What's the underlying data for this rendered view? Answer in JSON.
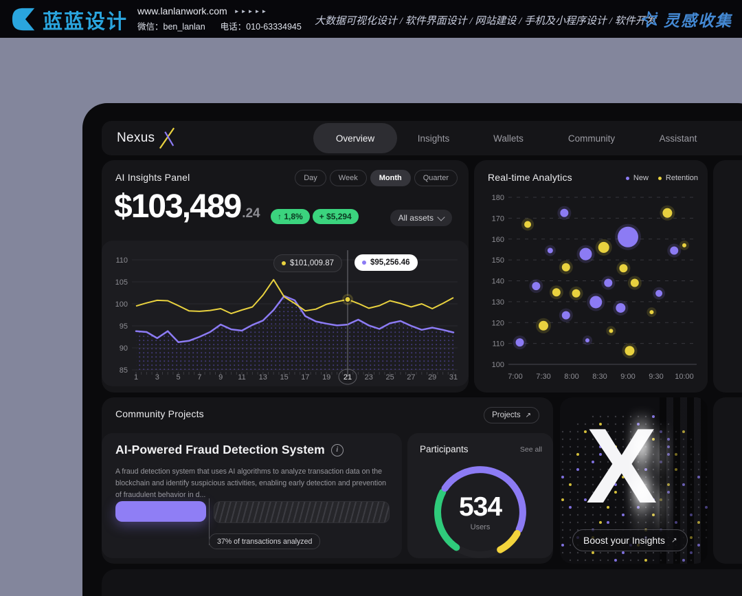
{
  "colors": {
    "purple": "#8C7BF4",
    "yellow": "#E9D23F",
    "green": "#3BD47E",
    "blue": "#2AA5DE"
  },
  "banner": {
    "brand": "蓝蓝设计",
    "url": "www.lanlanwork.com",
    "arrows": "►►►►►",
    "wechat": "微信：ben_lanlan",
    "phone": "电话：010-63334945",
    "services": "大数据可视化设计 / 软件界面设计 / 网站建设 / 手机及小程序设计 / 软件开发",
    "inspiration": "灵感收集"
  },
  "nav": {
    "brand": "Nexus",
    "active_tab": "Overview",
    "tabs": [
      {
        "label": "Overview"
      },
      {
        "label": "Insights"
      },
      {
        "label": "Wallets"
      },
      {
        "label": "Community"
      },
      {
        "label": "Assistant"
      }
    ]
  },
  "ai_panel": {
    "title": "AI Insights Panel",
    "ranges": [
      "Day",
      "Week",
      "Month",
      "Quarter"
    ],
    "active_range": "Month",
    "value": "$103,489",
    "decimal": ".24",
    "change_pct": "↑ 1,8%",
    "change_amount": "+ $5,294",
    "assets_dropdown": "All assets",
    "tooltip_yellow": "$101,009.87",
    "tooltip_white": "$95,256.46"
  },
  "realtime": {
    "title": "Real-time Analytics",
    "legend": [
      {
        "label": "New",
        "color": "#8C7BF4"
      },
      {
        "label": "Retention",
        "color": "#E9D23F"
      }
    ]
  },
  "community": {
    "title": "Community Projects",
    "projects_button": "Projects",
    "fraud": {
      "title": "AI-Powered Fraud Detection System",
      "description": "A fraud detection system that uses AI algorithms to analyze transaction data on the blockchain and identify suspicious activities, enabling early detection and prevention of fraudulent behavior in d...",
      "progress_pct": 37,
      "progress_label": "37% of transactions analyzed"
    },
    "participants": {
      "title": "Participants",
      "see_all": "See all",
      "value": "534",
      "unit": "Users"
    }
  },
  "boost": {
    "label": "Boost your Insights",
    "graphic_letter": "X"
  },
  "chart_data": [
    {
      "type": "line",
      "title": "AI Insights Panel (Month)",
      "x": [
        1,
        2,
        3,
        4,
        5,
        6,
        7,
        8,
        9,
        10,
        11,
        12,
        13,
        14,
        15,
        16,
        17,
        18,
        19,
        20,
        21,
        22,
        23,
        24,
        25,
        26,
        27,
        28,
        29,
        30,
        31
      ],
      "xticks": [
        1,
        3,
        5,
        7,
        9,
        11,
        13,
        15,
        17,
        19,
        21,
        23,
        25,
        27,
        29,
        31
      ],
      "selected_x": 21,
      "crosshair_x": 21,
      "ylim": [
        85,
        110
      ],
      "yticks": [
        85,
        90,
        95,
        100,
        105,
        110
      ],
      "grid": true,
      "series": [
        {
          "name": "Retention",
          "color": "#E9D23F",
          "values": [
            99.5,
            100.2,
            100.8,
            100.7,
            99.6,
            98.4,
            98.3,
            98.5,
            98.9,
            97.8,
            98.6,
            99.3,
            102.0,
            105.5,
            101.6,
            100.1,
            98.4,
            98.8,
            99.9,
            100.5,
            101.0,
            100.1,
            99.0,
            99.6,
            100.7,
            100.1,
            99.3,
            100.0,
            98.9,
            100.1,
            101.4
          ]
        },
        {
          "name": "New",
          "color": "#8C7BF4",
          "area_dots": true,
          "values": [
            93.8,
            93.6,
            92.2,
            93.8,
            91.3,
            91.6,
            92.5,
            93.6,
            95.3,
            94.2,
            93.9,
            95.2,
            96.2,
            98.6,
            101.8,
            100.8,
            97.2,
            96.0,
            95.5,
            95.1,
            95.3,
            96.4,
            95.1,
            94.3,
            95.6,
            96.1,
            95.0,
            94.1,
            94.6,
            94.1,
            93.5
          ]
        }
      ],
      "markers": [
        {
          "series": "Retention",
          "x": 21,
          "value_label": "$101,009.87"
        },
        {
          "series": "New",
          "x": 21,
          "value_label": "$95,256.46"
        }
      ]
    },
    {
      "type": "scatter",
      "title": "Real-time Analytics",
      "xlim": [
        7,
        10
      ],
      "xticks": [
        "7:00",
        "7:30",
        "8:00",
        "8:30",
        "9:00",
        "9:30",
        "10:00"
      ],
      "ylim": [
        100,
        180
      ],
      "yticks": [
        100,
        110,
        120,
        130,
        140,
        150,
        160,
        170,
        180
      ],
      "grid": "dashed",
      "series": [
        {
          "name": "New",
          "color": "#8C7BF4",
          "points": [
            [
              7.08,
              110.5,
              6
            ],
            [
              7.37,
              137.5,
              6
            ],
            [
              7.62,
              154.5,
              4
            ],
            [
              7.87,
              172.5,
              6
            ],
            [
              7.9,
              123.5,
              6
            ],
            [
              8.25,
              152.8,
              9
            ],
            [
              8.28,
              111.5,
              3
            ],
            [
              8.43,
              129.8,
              9
            ],
            [
              8.65,
              139,
              6
            ],
            [
              8.87,
              127,
              7
            ],
            [
              9.0,
              161,
              15
            ],
            [
              9.55,
              134,
              5
            ],
            [
              9.82,
              154.5,
              6
            ]
          ]
        },
        {
          "name": "Retention",
          "color": "#E9D23F",
          "points": [
            [
              7.22,
              167,
              5
            ],
            [
              7.5,
              118.5,
              7
            ],
            [
              7.73,
              134.5,
              6
            ],
            [
              7.9,
              146.5,
              6
            ],
            [
              8.08,
              134,
              6
            ],
            [
              8.57,
              156,
              8
            ],
            [
              8.7,
              116,
              3
            ],
            [
              8.92,
              146,
              6
            ],
            [
              9.03,
              106.5,
              7
            ],
            [
              9.12,
              139,
              6
            ],
            [
              9.42,
              125,
              3
            ],
            [
              9.7,
              172.5,
              7
            ],
            [
              10.0,
              157,
              3
            ]
          ]
        }
      ]
    },
    {
      "type": "gauge",
      "value": 534,
      "unit": "Users",
      "segments": [
        {
          "name": "green",
          "color": "#2FCB7B",
          "start": 214,
          "end": 298
        },
        {
          "name": "purple",
          "color": "#8C7BF4",
          "start": 304,
          "end": 114
        },
        {
          "name": "yellow",
          "color": "#F3D43C",
          "start": 120,
          "end": 152
        }
      ]
    }
  ]
}
